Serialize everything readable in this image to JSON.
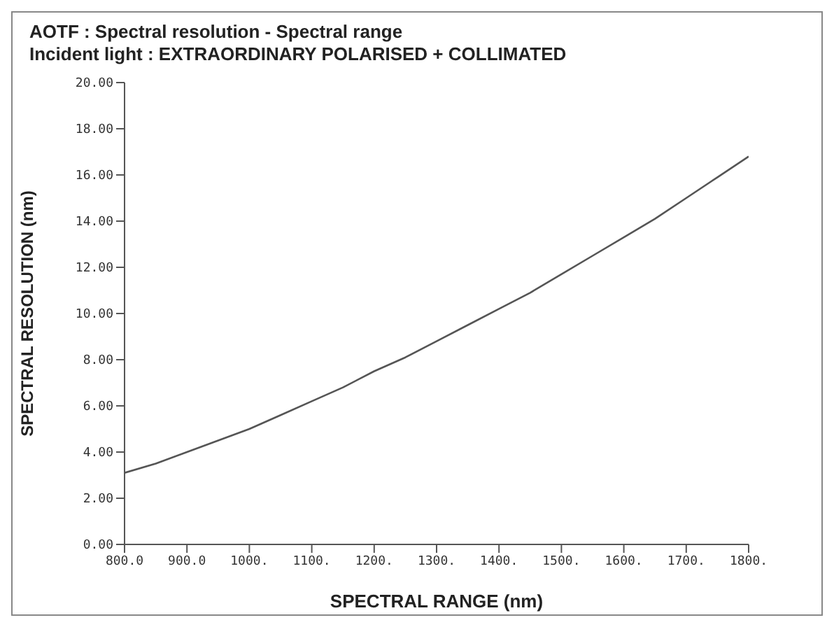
{
  "chart_data": {
    "type": "line",
    "title": "AOTF : Spectral resolution - Spectral range",
    "subtitle": "Incident light : EXTRAORDINARY POLARISED + COLLIMATED",
    "xlabel": "SPECTRAL RANGE (nm)",
    "ylabel": "SPECTRAL RESOLUTION (nm)",
    "x": [
      800,
      850,
      900,
      950,
      1000,
      1050,
      1100,
      1150,
      1200,
      1250,
      1300,
      1350,
      1400,
      1450,
      1500,
      1550,
      1600,
      1650,
      1700,
      1750,
      1800
    ],
    "series": [
      {
        "color": "#555555",
        "values": [
          3.1,
          3.5,
          4.0,
          4.5,
          5.0,
          5.6,
          6.2,
          6.8,
          7.5,
          8.1,
          8.8,
          9.5,
          10.2,
          10.9,
          11.7,
          12.5,
          13.3,
          14.1,
          15.0,
          15.9,
          16.8
        ]
      }
    ],
    "xlim": [
      800,
      1800
    ],
    "xticks": [
      {
        "value": 800,
        "label": "800.0"
      },
      {
        "value": 900,
        "label": "900.0"
      },
      {
        "value": 1000,
        "label": "1000."
      },
      {
        "value": 1100,
        "label": "1100."
      },
      {
        "value": 1200,
        "label": "1200."
      },
      {
        "value": 1300,
        "label": "1300."
      },
      {
        "value": 1400,
        "label": "1400."
      },
      {
        "value": 1500,
        "label": "1500."
      },
      {
        "value": 1600,
        "label": "1600."
      },
      {
        "value": 1700,
        "label": "1700."
      },
      {
        "value": 1800,
        "label": "1800."
      }
    ],
    "ylim": [
      0,
      20
    ],
    "yticks": [
      {
        "value": 0,
        "label": "0.00"
      },
      {
        "value": 2,
        "label": "2.00"
      },
      {
        "value": 4,
        "label": "4.00"
      },
      {
        "value": 6,
        "label": "6.00"
      },
      {
        "value": 8,
        "label": "8.00"
      },
      {
        "value": 10,
        "label": "10.00"
      },
      {
        "value": 12,
        "label": "12.00"
      },
      {
        "value": 14,
        "label": "14.00"
      },
      {
        "value": 16,
        "label": "16.00"
      },
      {
        "value": 18,
        "label": "18.00"
      },
      {
        "value": 20,
        "label": "20.00"
      }
    ],
    "grid": false,
    "legend": false,
    "marker": "none",
    "line_style": "solid"
  }
}
